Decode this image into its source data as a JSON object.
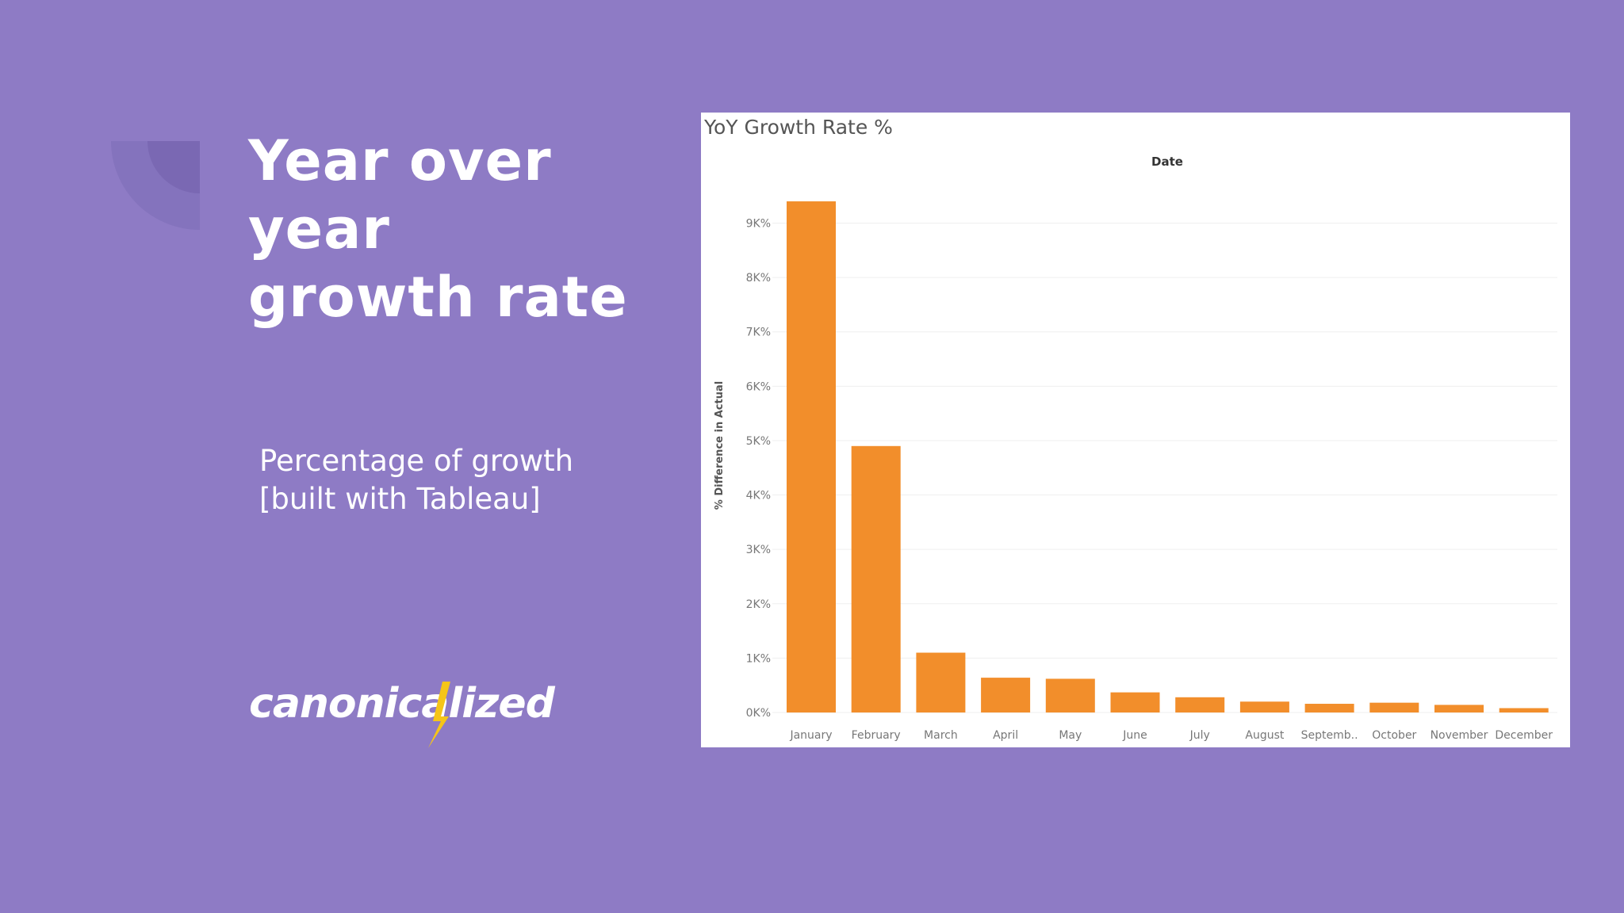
{
  "slide": {
    "title_line1": "Year over year",
    "title_line2": "growth rate",
    "subtitle_line1": "Percentage of growth",
    "subtitle_line2": "[built with Tableau]",
    "logo_text": "canonicalized",
    "background_color": "#8e7bc5"
  },
  "chart_data": {
    "type": "bar",
    "title": "YoY Growth Rate %",
    "column_header": "Date",
    "ylabel": "% Difference in Actual",
    "categories": [
      "January",
      "February",
      "March",
      "April",
      "May",
      "June",
      "July",
      "August",
      "Septemb..",
      "October",
      "November",
      "December"
    ],
    "values": [
      9400,
      4900,
      1100,
      640,
      620,
      370,
      280,
      200,
      160,
      180,
      140,
      80
    ],
    "yticks": [
      0,
      1000,
      2000,
      3000,
      4000,
      5000,
      6000,
      7000,
      8000,
      9000
    ],
    "ytick_labels": [
      "0K%",
      "1K%",
      "2K%",
      "3K%",
      "4K%",
      "5K%",
      "6K%",
      "7K%",
      "8K%",
      "9K%"
    ],
    "ylim": [
      -150,
      9750
    ],
    "grid": true,
    "bar_color": "#f28e2b"
  }
}
